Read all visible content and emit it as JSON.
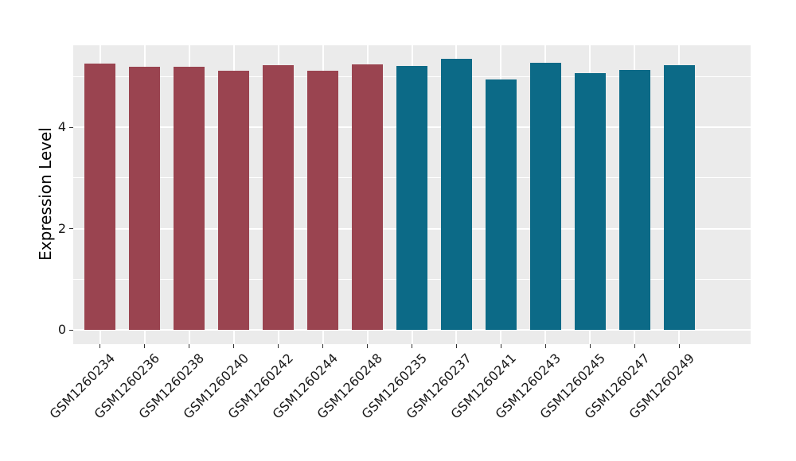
{
  "chart_data": {
    "type": "bar",
    "title": "",
    "xlabel": "",
    "ylabel": "Expression Level",
    "categories": [
      "GSM1260234",
      "GSM1260236",
      "GSM1260238",
      "GSM1260240",
      "GSM1260242",
      "GSM1260244",
      "GSM1260248",
      "GSM1260235",
      "GSM1260237",
      "GSM1260241",
      "GSM1260243",
      "GSM1260245",
      "GSM1260247",
      "GSM1260249"
    ],
    "values": [
      5.25,
      5.19,
      5.19,
      5.11,
      5.22,
      5.12,
      5.24,
      5.21,
      5.35,
      4.94,
      5.27,
      5.07,
      5.13,
      5.23
    ],
    "groups": [
      "group1",
      "group1",
      "group1",
      "group1",
      "group1",
      "group1",
      "group1",
      "group2",
      "group2",
      "group2",
      "group2",
      "group2",
      "group2",
      "group2"
    ],
    "group_colors": {
      "group1": "#9A4450",
      "group2": "#0C6A87"
    },
    "ylim": [
      0,
      5.62
    ],
    "y_ticks": [
      0,
      2,
      4
    ],
    "y_tick_labels": [
      "0",
      "2",
      "4"
    ],
    "y_minor_ticks": [
      1,
      3,
      5
    ],
    "bar_width_fraction": 0.7,
    "legend": "none",
    "grid": "on",
    "styles": {
      "panel_bg": "#EBEBEB",
      "grid_color": "#FFFFFF",
      "tick_mark_color": "#333333",
      "tick_label_color": "#1A1A1A",
      "axis_title_color": "#000000",
      "figure_bg": "#FFFFFF"
    }
  }
}
